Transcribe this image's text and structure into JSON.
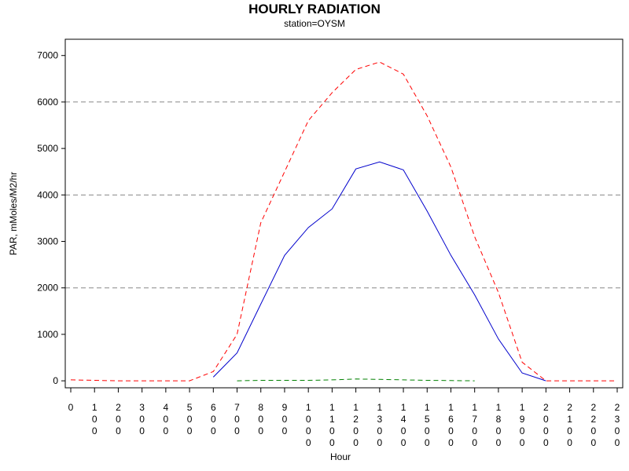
{
  "chart_data": {
    "type": "line",
    "title": "HOURLY RADIATION",
    "subtitle": "station=OYSM",
    "xlabel": "Hour",
    "ylabel": "PAR, mMoles/M2/hr",
    "xlim": [
      0,
      2300
    ],
    "ylim": [
      -150,
      7350
    ],
    "yticks": [
      0,
      1000,
      2000,
      3000,
      4000,
      5000,
      6000,
      7000
    ],
    "xticks": [
      "0",
      "100",
      "200",
      "300",
      "400",
      "500",
      "600",
      "700",
      "800",
      "900",
      "1000",
      "1100",
      "1200",
      "1300",
      "1400",
      "1500",
      "1600",
      "1700",
      "1800",
      "1900",
      "2000",
      "2100",
      "2200",
      "2300"
    ],
    "reference_lines": [
      2000,
      4000,
      6000
    ],
    "grid": false,
    "legend": "none",
    "series": [
      {
        "color": "#ff0000",
        "dash": "dashed",
        "points": [
          [
            0,
            20
          ],
          [
            100,
            10
          ],
          [
            200,
            0
          ],
          [
            300,
            0
          ],
          [
            400,
            0
          ],
          [
            500,
            0
          ],
          [
            600,
            200
          ],
          [
            700,
            1000
          ],
          [
            800,
            3400
          ],
          [
            900,
            4500
          ],
          [
            1000,
            5600
          ],
          [
            1100,
            6200
          ],
          [
            1200,
            6700
          ],
          [
            1300,
            6860
          ],
          [
            1400,
            6600
          ],
          [
            1500,
            5700
          ],
          [
            1600,
            4600
          ],
          [
            1700,
            3100
          ],
          [
            1800,
            1900
          ],
          [
            1900,
            400
          ],
          [
            2000,
            0
          ],
          [
            2100,
            0
          ],
          [
            2200,
            0
          ],
          [
            2300,
            0
          ]
        ]
      },
      {
        "color": "#0000cc",
        "dash": "solid",
        "points": [
          [
            600,
            80
          ],
          [
            700,
            600
          ],
          [
            800,
            1650
          ],
          [
            900,
            2700
          ],
          [
            1000,
            3300
          ],
          [
            1100,
            3700
          ],
          [
            1200,
            4560
          ],
          [
            1300,
            4710
          ],
          [
            1400,
            4540
          ],
          [
            1500,
            3650
          ],
          [
            1600,
            2700
          ],
          [
            1700,
            1850
          ],
          [
            1800,
            900
          ],
          [
            1900,
            170
          ],
          [
            2000,
            0
          ]
        ]
      },
      {
        "color": "#008000",
        "dash": "dashed",
        "points": [
          [
            700,
            0
          ],
          [
            800,
            10
          ],
          [
            900,
            10
          ],
          [
            1000,
            10
          ],
          [
            1100,
            20
          ],
          [
            1200,
            40
          ],
          [
            1300,
            30
          ],
          [
            1400,
            20
          ],
          [
            1500,
            10
          ],
          [
            1600,
            5
          ],
          [
            1700,
            0
          ]
        ]
      }
    ]
  }
}
